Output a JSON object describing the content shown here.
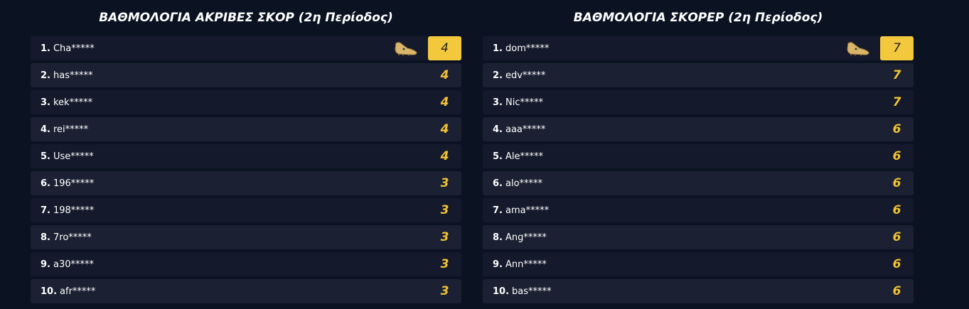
{
  "left": {
    "title": "ΒΑΘΜΟΛΟΓΙΑ ΑΚΡΙΒΕΣ ΣΚΟΡ (2η Περίοδος)",
    "rows": [
      {
        "rank": "1.",
        "name": "Cha*****",
        "score": "4"
      },
      {
        "rank": "2.",
        "name": "has*****",
        "score": "4"
      },
      {
        "rank": "3.",
        "name": "kek*****",
        "score": "4"
      },
      {
        "rank": "4.",
        "name": "rei*****",
        "score": "4"
      },
      {
        "rank": "5.",
        "name": "Use*****",
        "score": "4"
      },
      {
        "rank": "6.",
        "name": "196*****",
        "score": "3"
      },
      {
        "rank": "7.",
        "name": "198*****",
        "score": "3"
      },
      {
        "rank": "8.",
        "name": "7ro*****",
        "score": "3"
      },
      {
        "rank": "9.",
        "name": "a30*****",
        "score": "3"
      },
      {
        "rank": "10.",
        "name": "afr*****",
        "score": "3"
      }
    ]
  },
  "right": {
    "title": "ΒΑΘΜΟΛΟΓΙΑ ΣΚΟΡΕΡ (2η Περίοδος)",
    "rows": [
      {
        "rank": "1.",
        "name": "dom*****",
        "score": "7"
      },
      {
        "rank": "2.",
        "name": "edv*****",
        "score": "7"
      },
      {
        "rank": "3.",
        "name": "Nic*****",
        "score": "7"
      },
      {
        "rank": "4.",
        "name": "aaa*****",
        "score": "6"
      },
      {
        "rank": "5.",
        "name": "Ale*****",
        "score": "6"
      },
      {
        "rank": "6.",
        "name": "alo*****",
        "score": "6"
      },
      {
        "rank": "7.",
        "name": "ama*****",
        "score": "6"
      },
      {
        "rank": "8.",
        "name": "Ang*****",
        "score": "6"
      },
      {
        "rank": "9.",
        "name": "Ann*****",
        "score": "6"
      },
      {
        "rank": "10.",
        "name": "bas*****",
        "score": "6"
      }
    ]
  },
  "icons": {
    "leader": "golden-boot-icon"
  },
  "colors": {
    "accent": "#f3c83c",
    "background": "#0b1322"
  }
}
